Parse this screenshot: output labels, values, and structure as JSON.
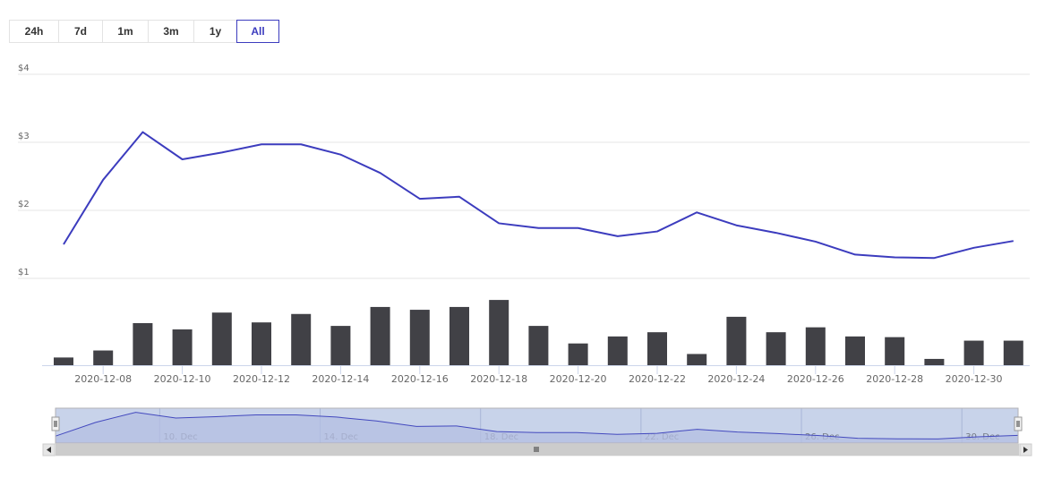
{
  "range_selector": {
    "buttons": [
      {
        "label": "24h",
        "selected": false
      },
      {
        "label": "7d",
        "selected": false
      },
      {
        "label": "1m",
        "selected": false
      },
      {
        "label": "3m",
        "selected": false
      },
      {
        "label": "1y",
        "selected": false
      },
      {
        "label": "All",
        "selected": true
      }
    ]
  },
  "colors": {
    "price_line": "#3c3cbe",
    "volume_bar": "#414146",
    "navigator_fill": "#c5cbe9",
    "navigator_line": "#3c3cbe",
    "grid": "#e6e6e6"
  },
  "chart_data": {
    "type": "line",
    "title": "",
    "x": [
      "2020-12-07",
      "2020-12-08",
      "2020-12-09",
      "2020-12-10",
      "2020-12-11",
      "2020-12-12",
      "2020-12-13",
      "2020-12-14",
      "2020-12-15",
      "2020-12-16",
      "2020-12-17",
      "2020-12-18",
      "2020-12-19",
      "2020-12-20",
      "2020-12-21",
      "2020-12-22",
      "2020-12-23",
      "2020-12-24",
      "2020-12-25",
      "2020-12-26",
      "2020-12-27",
      "2020-12-28",
      "2020-12-29",
      "2020-12-30",
      "2020-12-31"
    ],
    "series": [
      {
        "kind": "line",
        "axis": "price",
        "values": [
          1.5,
          2.45,
          3.15,
          2.75,
          2.85,
          2.97,
          2.97,
          2.82,
          2.55,
          2.17,
          2.2,
          1.81,
          1.74,
          1.74,
          1.62,
          1.69,
          1.97,
          1.78,
          1.67,
          1.54,
          1.35,
          1.31,
          1.3,
          1.45,
          1.55
        ]
      },
      {
        "kind": "bar",
        "axis": "volume",
        "values": [
          0.11,
          0.21,
          0.6,
          0.51,
          0.75,
          0.61,
          0.73,
          0.56,
          0.83,
          0.79,
          0.83,
          0.93,
          0.56,
          0.31,
          0.41,
          0.47,
          0.16,
          0.69,
          0.47,
          0.54,
          0.41,
          0.4,
          0.09,
          0.35,
          0.35
        ]
      }
    ],
    "price_axis": {
      "ticks": [
        "$1",
        "$2",
        "$3",
        "$4"
      ],
      "values": [
        1,
        2,
        3,
        4
      ],
      "ylim": [
        1,
        4
      ]
    },
    "volume_axis": {
      "ylim": [
        0,
        1.25
      ]
    },
    "x_tick_labels": [
      "2020-12-08",
      "2020-12-10",
      "2020-12-12",
      "2020-12-14",
      "2020-12-16",
      "2020-12-18",
      "2020-12-20",
      "2020-12-22",
      "2020-12-24",
      "2020-12-26",
      "2020-12-28",
      "2020-12-30"
    ],
    "navigator": {
      "tick_labels": [
        "10. Dec",
        "14. Dec",
        "18. Dec",
        "22. Dec",
        "26. Dec",
        "30. Dec"
      ],
      "tick_dates": [
        "2020-12-10",
        "2020-12-14",
        "2020-12-18",
        "2020-12-22",
        "2020-12-26",
        "2020-12-30"
      ]
    },
    "grid": true,
    "legend": "none"
  }
}
